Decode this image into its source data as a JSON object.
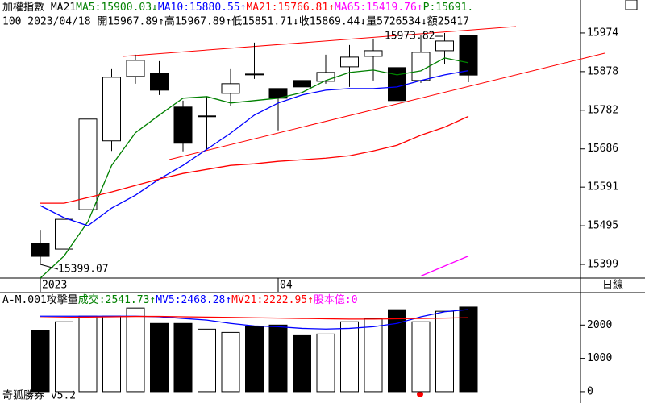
{
  "chart_data": [
    {
      "type": "candlestick",
      "legend": [
        {
          "text": "加權指數 MA21",
          "color": "#000000"
        },
        {
          "text": "MA5:15900.03↓",
          "color": "#008000"
        },
        {
          "text": "MA10:15880.55↑",
          "color": "#0000ff"
        },
        {
          "text": "MA21:15766.81↑",
          "color": "#ff0000"
        },
        {
          "text": "MA65:15419.76↑",
          "color": "#ff00ff"
        },
        {
          "text": "P:15691.",
          "color": "#008000"
        }
      ],
      "subtitle": "100 2023/04/18 開15967.89↑高15967.89↑低15851.71↓收15869.44↓量5726534↓額25417",
      "categories": [
        "2023",
        null,
        null,
        null,
        null,
        null,
        null,
        null,
        null,
        null,
        "04",
        null,
        null,
        null,
        null,
        null,
        null,
        null,
        null
      ],
      "open": [
        15451,
        15437,
        15535,
        15706,
        15866,
        15874,
        15790,
        15766,
        15824,
        15872,
        15836,
        15856,
        15854,
        15890,
        15916,
        15888,
        15856,
        15930,
        15967.89
      ],
      "high": [
        15485,
        15545,
        15760,
        15886,
        15920,
        15904,
        15806,
        15816,
        15886,
        15950,
        15836,
        15876,
        15920,
        15944,
        15960,
        15912,
        15970,
        15973.82,
        15967.89
      ],
      "low": [
        15399.07,
        15437,
        15535,
        15681,
        15848,
        15820,
        15680,
        15684,
        15792,
        15860,
        15732,
        15822,
        15848,
        15840,
        15856,
        15800,
        15850,
        15896,
        15851.71
      ],
      "close": [
        15419,
        15511,
        15760,
        15864,
        15906,
        15832,
        15700,
        15768,
        15848,
        15870,
        15812,
        15840,
        15876,
        15914,
        15930,
        15806,
        15926,
        15954,
        15869.44
      ],
      "up_color": "#ffffff",
      "down_color": "#000000",
      "series": [
        {
          "color": "#008000",
          "values": [
            15365,
            15420,
            15505,
            15645,
            15726,
            15770,
            15812,
            15816,
            15800,
            15806,
            15812,
            15826,
            15856,
            15876,
            15882,
            15870,
            15880,
            15912,
            15900.03
          ]
        },
        {
          "color": "#0000ff",
          "values": [
            15545,
            15515,
            15495,
            15539,
            15571,
            15611,
            15645,
            15685,
            15725,
            15770,
            15800,
            15820,
            15832,
            15836,
            15836,
            15840,
            15856,
            15870,
            15880.55
          ]
        },
        {
          "color": "#ff0000",
          "values": [
            15551,
            15551,
            15565,
            15579,
            15595,
            15611,
            15625,
            15635,
            15645,
            15649,
            15655,
            15659,
            15663,
            15669,
            15681,
            15695,
            15720,
            15740,
            15766.81
          ]
        },
        {
          "color": "#ff00ff",
          "values": [
            null,
            null,
            null,
            null,
            null,
            null,
            null,
            null,
            null,
            null,
            null,
            null,
            null,
            null,
            null,
            null,
            15370,
            15395,
            15419.76
          ]
        }
      ],
      "annotations": [
        "15973.82",
        "15399.07"
      ],
      "ylim": [
        15365,
        16056
      ],
      "yticks": [
        15974,
        15878,
        15782,
        15686,
        15591,
        15495,
        15399
      ]
    },
    {
      "type": "bar",
      "legend": [
        {
          "text": "A-M.001攻擊量",
          "color": "#000000"
        },
        {
          "text": "成交:2541.73↑",
          "color": "#008000"
        },
        {
          "text": "MV5:2468.28↑",
          "color": "#0000ff"
        },
        {
          "text": "MV21:2222.95↑",
          "color": "#ff0000"
        },
        {
          "text": "股本億:0",
          "color": "#ff00ff"
        }
      ],
      "values": [
        1829,
        2098,
        2268,
        2268,
        2512,
        2049,
        2049,
        1878,
        1780,
        1951,
        2000,
        1683,
        1732,
        2098,
        2195,
        2463,
        2098,
        2415,
        2541.73
      ],
      "series": [
        {
          "color": "#0000ff",
          "values": [
            2268,
            2268,
            2268,
            2268,
            2268,
            2250,
            2200,
            2150,
            2050,
            1975,
            1950,
            1900,
            1880,
            1900,
            1950,
            2050,
            2250,
            2400,
            2468.28
          ]
        },
        {
          "color": "#ff0000",
          "values": [
            2220,
            2230,
            2240,
            2250,
            2260,
            2260,
            2250,
            2240,
            2230,
            2220,
            2210,
            2200,
            2190,
            2180,
            2180,
            2190,
            2200,
            2210,
            2222.95
          ]
        }
      ],
      "ylim": [
        -341,
        2976
      ],
      "yticks": [
        0,
        1000,
        2000
      ]
    }
  ],
  "period": "日線",
  "footer": "奇狐勝券 v5.2"
}
